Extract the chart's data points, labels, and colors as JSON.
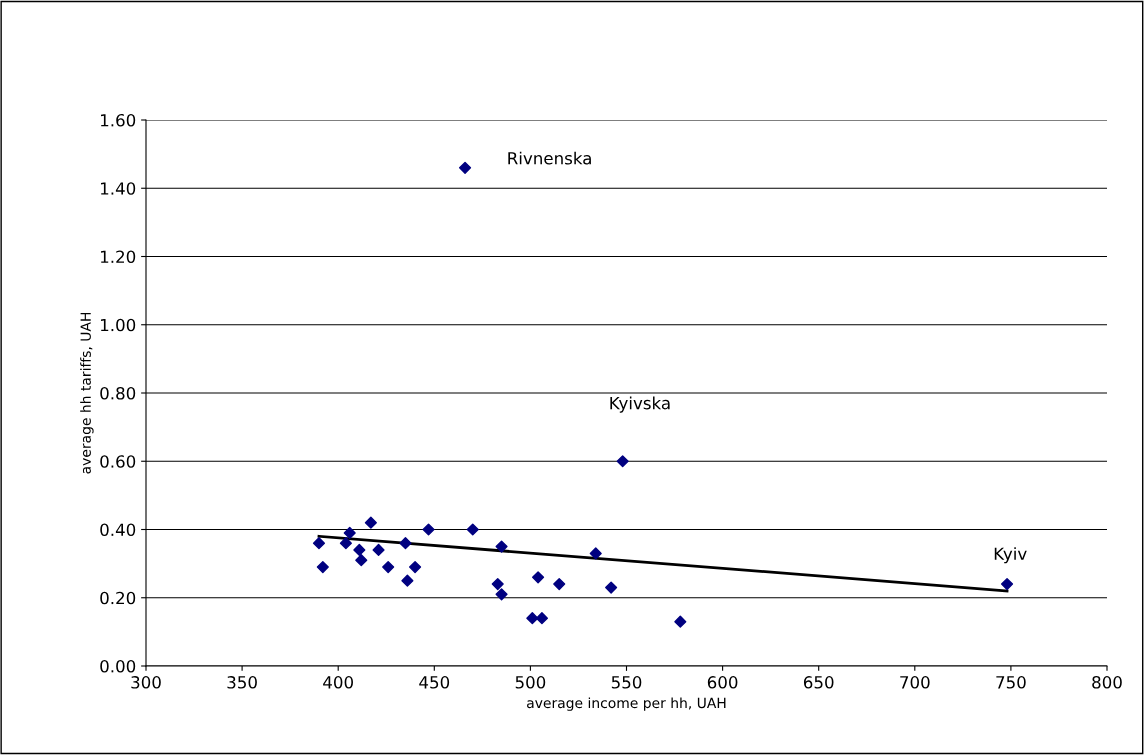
{
  "chart_data": {
    "type": "scatter",
    "xlabel": "average income per hh, UAH",
    "ylabel": "average hh tariffs, UAH",
    "xlim": [
      300,
      800
    ],
    "xticks": [
      300,
      350,
      400,
      450,
      500,
      550,
      600,
      650,
      700,
      750,
      800
    ],
    "ylim": [
      0,
      1.6
    ],
    "yticks": [
      {
        "value": 0,
        "label": "0.00"
      },
      {
        "value": 0.2,
        "label": "0.20"
      },
      {
        "value": 0.4,
        "label": "0.40"
      },
      {
        "value": 0.6,
        "label": "0.60"
      },
      {
        "value": 0.8,
        "label": "0.80"
      },
      {
        "value": 1.0,
        "label": "1.00"
      },
      {
        "value": 1.2,
        "label": "1.20"
      },
      {
        "value": 1.4,
        "label": "1.40"
      },
      {
        "value": 1.6,
        "label": "1.60"
      }
    ],
    "grid": "y",
    "legend": false,
    "marker": "diamond",
    "series": [
      {
        "color": "#000080",
        "x": [
          390,
          392,
          404,
          406,
          417,
          411,
          412,
          421,
          426,
          435,
          436,
          440,
          447,
          470,
          485,
          483,
          485,
          501,
          506,
          504,
          515,
          534,
          542,
          548,
          578,
          466,
          748
        ],
        "values": [
          0.36,
          0.29,
          0.36,
          0.39,
          0.42,
          0.34,
          0.31,
          0.34,
          0.29,
          0.36,
          0.25,
          0.29,
          0.4,
          0.4,
          0.35,
          0.24,
          0.21,
          0.14,
          0.14,
          0.26,
          0.24,
          0.33,
          0.23,
          0.6,
          0.13,
          1.46,
          0.24
        ]
      },
      {
        "type": "line",
        "color": "#000000",
        "marker": "none",
        "x": [
          390,
          748
        ],
        "values": [
          0.38,
          0.22
        ]
      }
    ],
    "annotations": [
      {
        "text": "Rivnenska",
        "x": 466,
        "y": 1.46
      },
      {
        "text": "Kyivska",
        "x": 548,
        "y": 0.6
      },
      {
        "text": "Kyiv",
        "x": 748,
        "y": 0.24
      }
    ]
  }
}
